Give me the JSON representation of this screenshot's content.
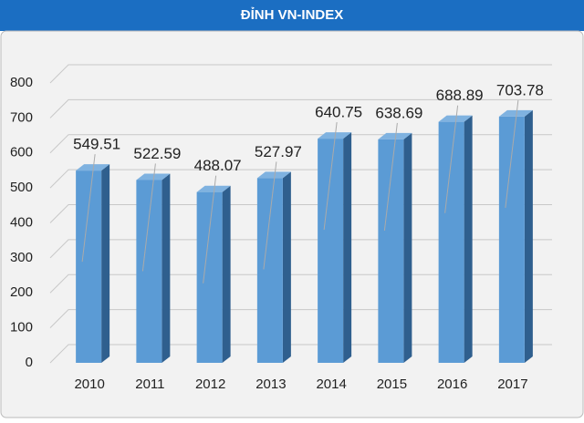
{
  "chart_data": {
    "type": "bar",
    "title": "ĐỈNH VN-INDEX",
    "categories": [
      "2010",
      "2011",
      "2012",
      "2013",
      "2014",
      "2015",
      "2016",
      "2017"
    ],
    "values": [
      549.51,
      522.59,
      488.07,
      527.97,
      640.75,
      638.69,
      688.89,
      703.78
    ],
    "color": "#5b9bd5",
    "ylim": [
      0,
      800
    ],
    "yticks": [
      0,
      100,
      200,
      300,
      400,
      500,
      600,
      700,
      800
    ],
    "grid": true
  }
}
